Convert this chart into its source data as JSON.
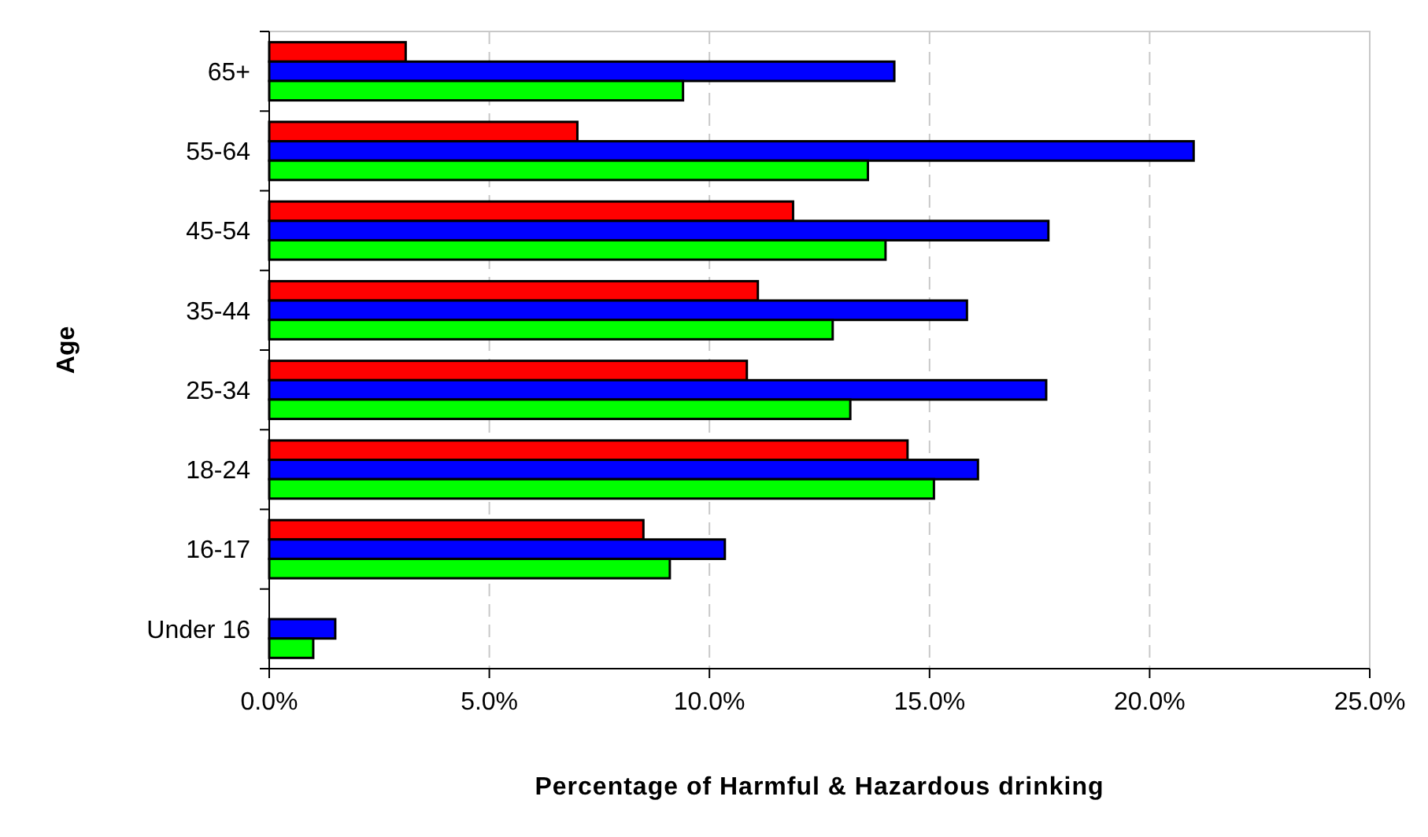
{
  "chart_data": {
    "type": "bar",
    "orientation": "horizontal",
    "xlabel": "Percentage of Harmful & Hazardous drinking",
    "ylabel": "Age",
    "categories": [
      "65+",
      "55-64",
      "45-54",
      "35-44",
      "25-34",
      "18-24",
      "16-17",
      "Under 16"
    ],
    "series": [
      {
        "color": "#ff0000",
        "values": [
          3.1,
          7.0,
          11.9,
          11.1,
          10.85,
          14.5,
          8.5,
          null
        ]
      },
      {
        "color": "#0000ff",
        "values": [
          14.2,
          21.0,
          17.7,
          15.85,
          17.65,
          16.1,
          10.35,
          1.5
        ]
      },
      {
        "color": "#00ff00",
        "values": [
          9.4,
          13.6,
          14.0,
          12.8,
          13.2,
          15.1,
          9.1,
          1.0
        ]
      }
    ],
    "xlim": [
      0,
      25
    ],
    "xticks": [
      {
        "value": 0,
        "label": "0.0%"
      },
      {
        "value": 5,
        "label": "5.0%"
      },
      {
        "value": 10,
        "label": "10.0%"
      },
      {
        "value": 15,
        "label": "15.0%"
      },
      {
        "value": 20,
        "label": "20.0%"
      },
      {
        "value": 25,
        "label": "25.0%"
      }
    ],
    "grid": "x"
  }
}
